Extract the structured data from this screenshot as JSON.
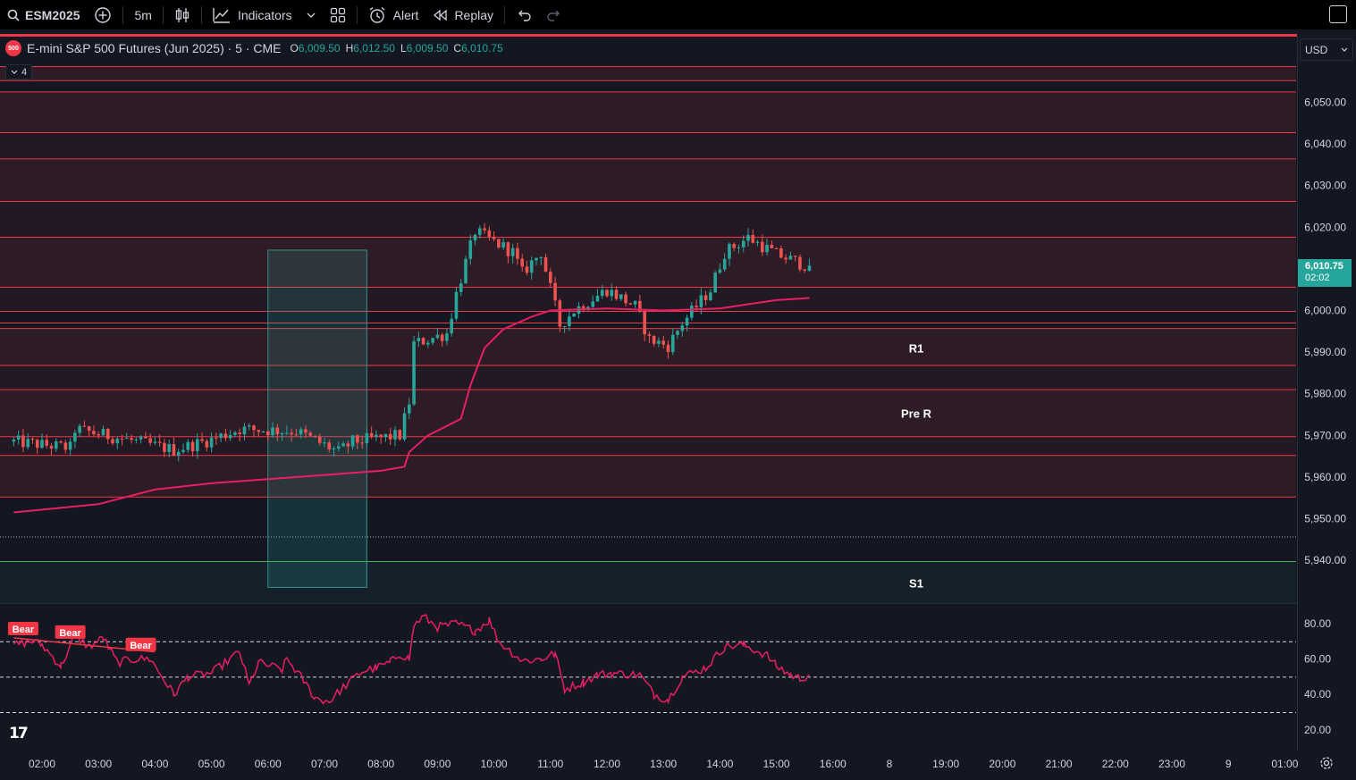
{
  "toolbar": {
    "symbol": "ESM2025",
    "interval": "5m",
    "indicators_label": "Indicators",
    "alert_label": "Alert",
    "replay_label": "Replay"
  },
  "legend": {
    "badge": "500",
    "title": "E-mini S&P 500 Futures (Jun 2025) · 5 · CME",
    "open_key": "O",
    "open": "6,009.50",
    "high_key": "H",
    "high": "6,012.50",
    "low_key": "L",
    "low": "6,009.50",
    "close_key": "C",
    "close": "6,010.75",
    "collapsed_count": "4"
  },
  "currency": "USD",
  "last_price": {
    "price": "6,010.75",
    "countdown": "02:02"
  },
  "price_axis": {
    "ticks": [
      {
        "v": 6050,
        "label": "6,050.00"
      },
      {
        "v": 6040,
        "label": "6,040.00"
      },
      {
        "v": 6030,
        "label": "6,030.00"
      },
      {
        "v": 6020,
        "label": "6,020.00"
      },
      {
        "v": 6000,
        "label": "6,000.00"
      },
      {
        "v": 5990,
        "label": "5,990.00"
      },
      {
        "v": 5980,
        "label": "5,980.00"
      },
      {
        "v": 5970,
        "label": "5,970.00"
      },
      {
        "v": 5960,
        "label": "5,960.00"
      },
      {
        "v": 5950,
        "label": "5,950.00"
      },
      {
        "v": 5940,
        "label": "5,940.00"
      }
    ]
  },
  "rsi_axis": {
    "ticks": [
      {
        "v": 80,
        "label": "80.00"
      },
      {
        "v": 60,
        "label": "60.00"
      },
      {
        "v": 40,
        "label": "40.00"
      },
      {
        "v": 20,
        "label": "20.00"
      }
    ],
    "upper_band": 70,
    "middle_band": 50,
    "lower_band": 30
  },
  "time_axis": [
    "02:00",
    "03:00",
    "04:00",
    "05:00",
    "06:00",
    "07:00",
    "08:00",
    "09:00",
    "10:00",
    "11:00",
    "12:00",
    "13:00",
    "14:00",
    "15:00",
    "16:00",
    "8",
    "19:00",
    "20:00",
    "21:00",
    "22:00",
    "23:00",
    "9",
    "01:00"
  ],
  "levels": {
    "red_lines": [
      6058.7,
      6055.3,
      6052.6,
      6042.8,
      6036.5,
      6026.3,
      6017.7,
      6005.7,
      5999.9,
      5997.1,
      5995.8,
      5986.9,
      5981.1,
      5969.8,
      5965.3,
      5955.3
    ],
    "dotted_line": 5945.7,
    "green_line": 5939.8,
    "labels": [
      {
        "text": "R1",
        "v": 5991.0
      },
      {
        "text": "Pre R",
        "v": 5975.3
      },
      {
        "text": "S1",
        "v": 5934.5
      }
    ]
  },
  "rsi_labels": [
    "Bear",
    "Bear",
    "Bear"
  ],
  "colors": {
    "bg": "#131722",
    "up": "#26a69a",
    "down": "#ef5350",
    "level": "#f23645",
    "vwap": "#e91e63",
    "green_level": "#4caf50"
  },
  "chart_data": {
    "type": "candlestick",
    "symbol": "ESM2025",
    "interval": "5m",
    "ylim": [
      5932,
      6062
    ],
    "segments": [
      {
        "from": "01:30",
        "price": 5968.5
      },
      {
        "from": "02:30",
        "price": 5967.0
      },
      {
        "from": "02:35",
        "price": 5971.5
      },
      {
        "from": "03:30",
        "price": 5969.0
      },
      {
        "from": "04:20",
        "price": 5966.5
      },
      {
        "from": "05:00",
        "price": 5969.0
      },
      {
        "from": "05:30",
        "price": 5971.5
      },
      {
        "from": "06:30",
        "price": 5971.0
      },
      {
        "from": "07:15",
        "price": 5966.0
      },
      {
        "from": "07:30",
        "price": 5968.5
      },
      {
        "from": "08:20",
        "price": 5970.0
      },
      {
        "from": "08:30",
        "price": 5978.0
      },
      {
        "from": "08:35",
        "price": 5992.0
      },
      {
        "from": "09:10",
        "price": 5994.5
      },
      {
        "from": "09:20",
        "price": 6004.0
      },
      {
        "from": "09:40",
        "price": 6019.0
      },
      {
        "from": "10:20",
        "price": 6014.0
      },
      {
        "from": "10:30",
        "price": 6009.0
      },
      {
        "from": "10:50",
        "price": 6014.0
      },
      {
        "from": "11:10",
        "price": 5996.5
      },
      {
        "from": "11:25",
        "price": 6000.0
      },
      {
        "from": "12:00",
        "price": 6005.0
      },
      {
        "from": "12:30",
        "price": 6001.0
      },
      {
        "from": "12:45",
        "price": 5993.0
      },
      {
        "from": "13:05",
        "price": 5991.5
      },
      {
        "from": "13:20",
        "price": 5997.0
      },
      {
        "from": "13:50",
        "price": 6005.0
      },
      {
        "from": "14:05",
        "price": 6014.0
      },
      {
        "from": "14:30",
        "price": 6017.5
      },
      {
        "from": "15:00",
        "price": 6013.5
      },
      {
        "from": "15:35",
        "price": 6010.5
      }
    ],
    "last": {
      "open": 6009.5,
      "high": 6012.5,
      "low": 6009.5,
      "close": 6010.75
    },
    "vwap": [
      {
        "t": "01:30",
        "v": 5951.5
      },
      {
        "t": "03:00",
        "v": 5953.5
      },
      {
        "t": "04:00",
        "v": 5957.0
      },
      {
        "t": "05:00",
        "v": 5958.5
      },
      {
        "t": "06:00",
        "v": 5959.5
      },
      {
        "t": "07:00",
        "v": 5960.5
      },
      {
        "t": "08:00",
        "v": 5961.5
      },
      {
        "t": "08:25",
        "v": 5962.5
      },
      {
        "t": "08:30",
        "v": 5966.0
      },
      {
        "t": "08:50",
        "v": 5970.0
      },
      {
        "t": "09:25",
        "v": 5974.0
      },
      {
        "t": "09:35",
        "v": 5982.0
      },
      {
        "t": "09:50",
        "v": 5991.0
      },
      {
        "t": "10:10",
        "v": 5995.5
      },
      {
        "t": "10:40",
        "v": 5998.5
      },
      {
        "t": "11:00",
        "v": 6000.0
      },
      {
        "t": "12:00",
        "v": 6000.5
      },
      {
        "t": "13:00",
        "v": 6000.0
      },
      {
        "t": "14:00",
        "v": 6000.5
      },
      {
        "t": "14:30",
        "v": 6001.5
      },
      {
        "t": "15:00",
        "v": 6002.5
      },
      {
        "t": "15:35",
        "v": 6003.0
      }
    ],
    "rsi": [
      {
        "t": "01:30",
        "v": 68
      },
      {
        "t": "01:50",
        "v": 70
      },
      {
        "t": "02:00",
        "v": 68
      },
      {
        "t": "02:20",
        "v": 56
      },
      {
        "t": "02:35",
        "v": 73
      },
      {
        "t": "02:50",
        "v": 67
      },
      {
        "t": "03:05",
        "v": 72
      },
      {
        "t": "03:20",
        "v": 58
      },
      {
        "t": "03:40",
        "v": 60
      },
      {
        "t": "03:55",
        "v": 60
      },
      {
        "t": "04:05",
        "v": 52
      },
      {
        "t": "04:20",
        "v": 40
      },
      {
        "t": "04:35",
        "v": 50
      },
      {
        "t": "05:00",
        "v": 52
      },
      {
        "t": "05:30",
        "v": 64
      },
      {
        "t": "05:40",
        "v": 45
      },
      {
        "t": "05:50",
        "v": 58
      },
      {
        "t": "06:15",
        "v": 54
      },
      {
        "t": "06:20",
        "v": 60
      },
      {
        "t": "06:35",
        "v": 50
      },
      {
        "t": "06:50",
        "v": 38
      },
      {
        "t": "07:05",
        "v": 36
      },
      {
        "t": "07:20",
        "v": 44
      },
      {
        "t": "07:40",
        "v": 53
      },
      {
        "t": "07:55",
        "v": 55
      },
      {
        "t": "08:10",
        "v": 58
      },
      {
        "t": "08:20",
        "v": 63
      },
      {
        "t": "08:30",
        "v": 60
      },
      {
        "t": "08:35",
        "v": 79
      },
      {
        "t": "08:45",
        "v": 84
      },
      {
        "t": "09:00",
        "v": 78
      },
      {
        "t": "09:20",
        "v": 80
      },
      {
        "t": "09:40",
        "v": 76
      },
      {
        "t": "09:55",
        "v": 82
      },
      {
        "t": "10:05",
        "v": 70
      },
      {
        "t": "10:30",
        "v": 59
      },
      {
        "t": "10:50",
        "v": 60
      },
      {
        "t": "11:05",
        "v": 63
      },
      {
        "t": "11:15",
        "v": 43
      },
      {
        "t": "11:35",
        "v": 47
      },
      {
        "t": "11:50",
        "v": 51
      },
      {
        "t": "12:05",
        "v": 52
      },
      {
        "t": "12:35",
        "v": 51
      },
      {
        "t": "12:50",
        "v": 40
      },
      {
        "t": "13:05",
        "v": 37
      },
      {
        "t": "13:20",
        "v": 50
      },
      {
        "t": "13:45",
        "v": 55
      },
      {
        "t": "14:05",
        "v": 67
      },
      {
        "t": "14:25",
        "v": 68
      },
      {
        "t": "14:50",
        "v": 62
      },
      {
        "t": "15:00",
        "v": 56
      },
      {
        "t": "15:15",
        "v": 51
      },
      {
        "t": "15:25",
        "v": 49
      },
      {
        "t": "15:35",
        "v": 51
      }
    ],
    "session_range": {
      "from": "06:00",
      "to": "07:45",
      "high": 6014.5,
      "low": 5933.5
    }
  }
}
